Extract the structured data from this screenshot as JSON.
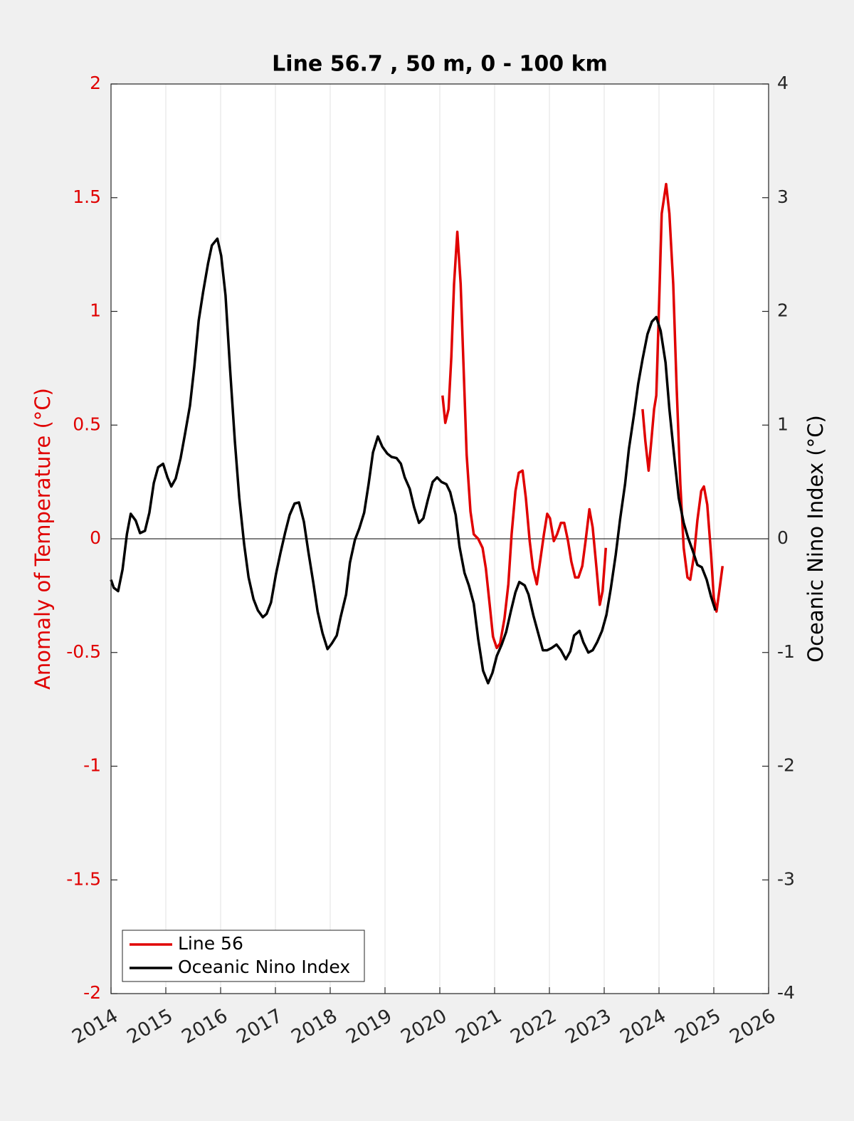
{
  "chart_data": {
    "type": "line",
    "title": "Line 56.7 , 50 m, 0 - 100 km",
    "ylabel": "Anomaly of Temperature (°C)",
    "y2label": "Oceanic Nino Index (°C)",
    "xlim": [
      2014,
      2026
    ],
    "xticks": [
      2014,
      2015,
      2016,
      2017,
      2018,
      2019,
      2020,
      2021,
      2022,
      2023,
      2024,
      2025,
      2026
    ],
    "ylim": [
      -2,
      2
    ],
    "yticks": [
      -2,
      -1.5,
      -1,
      -0.5,
      0,
      0.5,
      1,
      1.5,
      2
    ],
    "y2lim": [
      -4,
      4
    ],
    "y2ticks": [
      -4,
      -3,
      -2,
      -1,
      0,
      1,
      2,
      3,
      4
    ],
    "grid": "x",
    "legend": "lower left",
    "series": [
      {
        "name": "Line 56",
        "color": "#e00000",
        "axis": "y",
        "x": [
          2020.05,
          2020.1,
          2020.16,
          2020.21,
          2020.26,
          2020.32,
          2020.38,
          2020.44,
          2020.49,
          2020.56,
          2020.62,
          2020.7,
          2020.78,
          2020.84,
          2020.91,
          2020.97,
          2021.04,
          2021.1,
          2021.18,
          2021.25,
          2021.31,
          2021.38,
          2021.44,
          2021.51,
          2021.57,
          2021.64,
          2021.7,
          2021.77,
          2021.83,
          2021.9,
          2021.96,
          2022.01,
          2022.08,
          2022.14,
          2022.21,
          2022.27,
          2022.34,
          2022.4,
          2022.47,
          2022.53,
          2022.6,
          2022.66,
          2022.73,
          2022.79,
          2022.86,
          2022.92,
          2022.97,
          2023.03,
          2023.37,
          2023.7,
          2023.75,
          2023.81,
          2023.86,
          2023.91,
          2023.95,
          2024.0,
          2024.05,
          2024.13,
          2024.19,
          2024.26,
          2024.32,
          2024.39,
          2024.45,
          2024.52,
          2024.57,
          2024.64,
          2024.7,
          2024.77,
          2024.82,
          2024.88,
          2024.95,
          2025.0,
          2025.05,
          2025.1,
          2025.16
        ],
        "values": [
          0.63,
          0.51,
          0.57,
          0.8,
          1.12,
          1.35,
          1.12,
          0.71,
          0.37,
          0.12,
          0.02,
          0.0,
          -0.04,
          -0.13,
          -0.29,
          -0.43,
          -0.48,
          -0.46,
          -0.35,
          -0.2,
          0.02,
          0.21,
          0.29,
          0.3,
          0.18,
          -0.01,
          -0.13,
          -0.2,
          -0.1,
          0.02,
          0.11,
          0.09,
          -0.01,
          0.02,
          0.07,
          0.07,
          -0.01,
          -0.1,
          -0.17,
          -0.17,
          -0.12,
          -0.01,
          0.13,
          0.05,
          -0.13,
          -0.29,
          -0.23,
          -0.04,
          null,
          0.57,
          0.43,
          0.3,
          0.43,
          0.57,
          0.63,
          1.02,
          1.43,
          1.56,
          1.43,
          1.12,
          0.68,
          0.24,
          -0.04,
          -0.17,
          -0.18,
          -0.07,
          0.08,
          0.21,
          0.23,
          0.15,
          -0.07,
          -0.26,
          -0.32,
          -0.23,
          -0.12
        ]
      },
      {
        "name": "Oceanic Nino Index",
        "color": "#000000",
        "axis": "y2",
        "x": [
          2014.0,
          2014.05,
          2014.13,
          2014.21,
          2014.29,
          2014.36,
          2014.45,
          2014.53,
          2014.62,
          2014.7,
          2014.78,
          2014.86,
          2014.95,
          2015.03,
          2015.1,
          2015.18,
          2015.27,
          2015.35,
          2015.44,
          2015.52,
          2015.6,
          2015.68,
          2015.77,
          2015.84,
          2015.94,
          2016.01,
          2016.09,
          2016.17,
          2016.26,
          2016.34,
          2016.43,
          2016.51,
          2016.6,
          2016.68,
          2016.77,
          2016.84,
          2016.92,
          2017.01,
          2017.09,
          2017.18,
          2017.26,
          2017.35,
          2017.43,
          2017.52,
          2017.6,
          2017.69,
          2017.77,
          2017.86,
          2017.95,
          2018.03,
          2018.12,
          2018.19,
          2018.29,
          2018.36,
          2018.45,
          2018.53,
          2018.62,
          2018.7,
          2018.78,
          2018.87,
          2018.95,
          2019.04,
          2019.12,
          2019.21,
          2019.29,
          2019.36,
          2019.45,
          2019.53,
          2019.62,
          2019.7,
          2019.78,
          2019.87,
          2019.95,
          2020.03,
          2020.12,
          2020.19,
          2020.29,
          2020.36,
          2020.45,
          2020.53,
          2020.62,
          2020.7,
          2020.79,
          2020.88,
          2020.96,
          2021.04,
          2021.13,
          2021.21,
          2021.3,
          2021.38,
          2021.45,
          2021.55,
          2021.62,
          2021.71,
          2021.79,
          2021.88,
          2021.96,
          2022.04,
          2022.13,
          2022.21,
          2022.3,
          2022.38,
          2022.45,
          2022.55,
          2022.62,
          2022.71,
          2022.79,
          2022.87,
          2022.96,
          2023.04,
          2023.12,
          2023.21,
          2023.29,
          2023.38,
          2023.45,
          2023.55,
          2023.62,
          2023.7,
          2023.79,
          2023.87,
          2023.95,
          2024.03,
          2024.12,
          2024.19,
          2024.29,
          2024.36,
          2024.45,
          2024.53,
          2024.62,
          2024.7,
          2024.78,
          2024.87,
          2024.95,
          2025.03
        ],
        "values": [
          -0.36,
          -0.43,
          -0.46,
          -0.27,
          0.04,
          0.22,
          0.16,
          0.05,
          0.07,
          0.23,
          0.49,
          0.63,
          0.66,
          0.54,
          0.46,
          0.53,
          0.71,
          0.92,
          1.17,
          1.51,
          1.92,
          2.17,
          2.42,
          2.58,
          2.64,
          2.49,
          2.14,
          1.51,
          0.86,
          0.36,
          -0.05,
          -0.34,
          -0.53,
          -0.63,
          -0.69,
          -0.66,
          -0.56,
          -0.31,
          -0.13,
          0.06,
          0.21,
          0.31,
          0.32,
          0.15,
          -0.11,
          -0.38,
          -0.64,
          -0.83,
          -0.97,
          -0.92,
          -0.85,
          -0.69,
          -0.49,
          -0.21,
          -0.01,
          0.09,
          0.23,
          0.48,
          0.76,
          0.9,
          0.81,
          0.75,
          0.72,
          0.71,
          0.66,
          0.54,
          0.44,
          0.28,
          0.14,
          0.18,
          0.34,
          0.5,
          0.54,
          0.5,
          0.48,
          0.41,
          0.21,
          -0.07,
          -0.3,
          -0.41,
          -0.57,
          -0.88,
          -1.16,
          -1.27,
          -1.18,
          -1.03,
          -0.93,
          -0.82,
          -0.63,
          -0.47,
          -0.38,
          -0.41,
          -0.49,
          -0.68,
          -0.82,
          -0.98,
          -0.98,
          -0.96,
          -0.93,
          -0.98,
          -1.06,
          -0.99,
          -0.85,
          -0.81,
          -0.91,
          -1.0,
          -0.98,
          -0.91,
          -0.81,
          -0.67,
          -0.44,
          -0.14,
          0.17,
          0.48,
          0.79,
          1.11,
          1.36,
          1.58,
          1.8,
          1.91,
          1.95,
          1.83,
          1.55,
          1.14,
          0.67,
          0.36,
          0.14,
          0.01,
          -0.11,
          -0.23,
          -0.25,
          -0.36,
          -0.51,
          -0.63
        ]
      }
    ]
  }
}
